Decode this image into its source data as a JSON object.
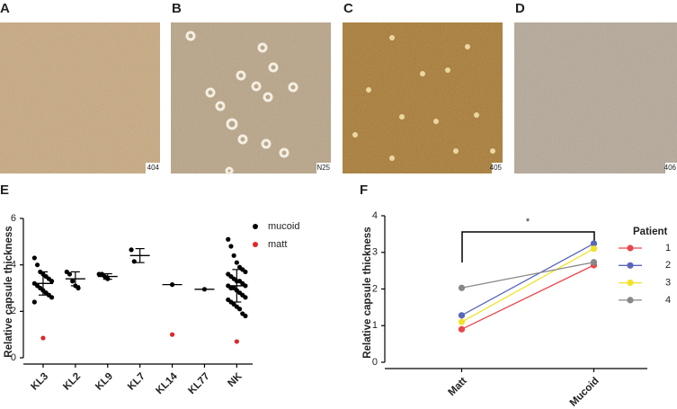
{
  "panels": [
    {
      "letter": "A",
      "label": "404"
    },
    {
      "letter": "B",
      "label": "N25"
    },
    {
      "letter": "C",
      "label": "405"
    },
    {
      "letter": "D",
      "label": "406"
    }
  ],
  "chart_data": [
    {
      "type": "strip",
      "panel": "E",
      "ylabel": "Relative capsule thickness",
      "categories": [
        "KL3",
        "KL2",
        "KL9",
        "KL7",
        "KL14",
        "KL77",
        "NK"
      ],
      "ylim": [
        0,
        6
      ],
      "yticks": [
        0,
        2,
        4,
        6
      ],
      "legend": "right",
      "series": [
        {
          "name": "mucoid",
          "color": "#000000",
          "values": [
            [
              4.3,
              4.0,
              3.7,
              3.6,
              3.5,
              3.4,
              3.3,
              3.2,
              3.1,
              3.0,
              2.9,
              2.8,
              2.7,
              2.6,
              2.4
            ],
            [
              3.7,
              3.6,
              3.3,
              3.1,
              3.0
            ],
            [
              3.6,
              3.6,
              3.5,
              3.4
            ],
            [
              4.65,
              4.15
            ],
            [
              3.15
            ],
            [
              2.95
            ],
            [
              5.1,
              4.8,
              4.4,
              4.1,
              3.9,
              3.8,
              3.7,
              3.6,
              3.5,
              3.4,
              3.3,
              3.3,
              3.2,
              3.1,
              3.1,
              3.0,
              3.0,
              2.9,
              2.8,
              2.7,
              2.6,
              2.5,
              2.4,
              2.3,
              2.2,
              2.1,
              1.9,
              1.8
            ]
          ],
          "mean": [
            3.2,
            3.4,
            3.5,
            4.4,
            3.15,
            2.95,
            3.1
          ],
          "sd": [
            0.5,
            0.3,
            0.12,
            0.3,
            null,
            null,
            0.7
          ]
        },
        {
          "name": "matt",
          "color": "#e0262b",
          "values": [
            [
              0.85
            ],
            null,
            null,
            null,
            [
              1.0
            ],
            null,
            [
              0.7
            ]
          ]
        }
      ]
    },
    {
      "type": "line",
      "panel": "F",
      "ylabel": "Relative capsule thickness",
      "categories": [
        "Matt",
        "Mucoid"
      ],
      "ylim": [
        0,
        4
      ],
      "yticks": [
        0,
        1,
        2,
        3,
        4
      ],
      "annotation": "*",
      "legend_title": "Patient",
      "legend": "right",
      "series": [
        {
          "name": "1",
          "color": "#e8474c",
          "values": [
            0.9,
            2.65
          ]
        },
        {
          "name": "2",
          "color": "#5a67b8",
          "values": [
            1.28,
            3.24
          ]
        },
        {
          "name": "3",
          "color": "#f2e22a",
          "values": [
            1.1,
            3.1
          ]
        },
        {
          "name": "4",
          "color": "#888888",
          "values": [
            2.03,
            2.73
          ]
        }
      ]
    }
  ]
}
